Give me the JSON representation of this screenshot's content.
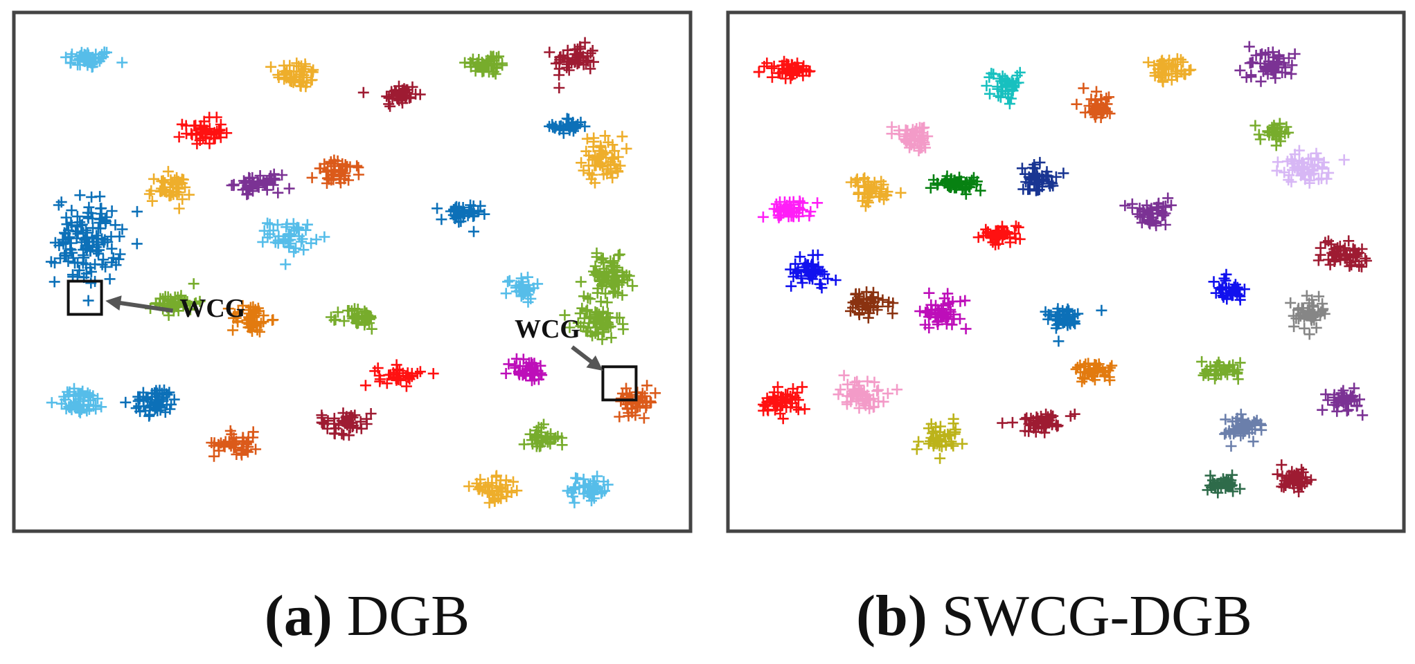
{
  "chart_data": [
    {
      "type": "scatter",
      "panel_label": "(a)",
      "title": "DGB",
      "marker": "plus",
      "xlim": [
        0,
        100
      ],
      "ylim": [
        0,
        100
      ],
      "grid": false,
      "legend": "none",
      "annotations": [
        {
          "text": "WCG",
          "box": [
            10.5,
            45
          ],
          "arrow_from": [
            23.5,
            42.5
          ],
          "text_at": [
            24.5,
            42.5
          ]
        },
        {
          "text": "WCG",
          "box": [
            89.5,
            28.5
          ],
          "arrow_from": [
            82.5,
            35.5
          ],
          "text_at": [
            74,
            38.5
          ]
        }
      ],
      "clusters": [
        {
          "x": 11,
          "y": 91,
          "color": "#56bde9",
          "n": 45,
          "sx": 3.0,
          "sy": 1.5
        },
        {
          "x": 42,
          "y": 88,
          "color": "#eeae2b",
          "n": 45,
          "sx": 2.6,
          "sy": 2.2
        },
        {
          "x": 57,
          "y": 84,
          "color": "#9e1b32",
          "n": 40,
          "sx": 2.2,
          "sy": 2.0
        },
        {
          "x": 70,
          "y": 90,
          "color": "#77ac2c",
          "n": 45,
          "sx": 2.6,
          "sy": 1.8
        },
        {
          "x": 83,
          "y": 91,
          "color": "#9e1b32",
          "n": 50,
          "sx": 2.6,
          "sy": 2.2
        },
        {
          "x": 28,
          "y": 77,
          "color": "#ff1111",
          "n": 45,
          "sx": 2.4,
          "sy": 2.0
        },
        {
          "x": 82,
          "y": 78,
          "color": "#0c70b8",
          "n": 30,
          "sx": 1.9,
          "sy": 1.4
        },
        {
          "x": 87,
          "y": 72,
          "color": "#eeae2b",
          "n": 55,
          "sx": 2.5,
          "sy": 3.5
        },
        {
          "x": 23,
          "y": 66,
          "color": "#eeae2b",
          "n": 45,
          "sx": 2.6,
          "sy": 2.2
        },
        {
          "x": 36,
          "y": 67,
          "color": "#7b3294",
          "n": 45,
          "sx": 2.8,
          "sy": 1.4
        },
        {
          "x": 48,
          "y": 69,
          "color": "#db5a1a",
          "n": 45,
          "sx": 2.8,
          "sy": 2.0
        },
        {
          "x": 11,
          "y": 56,
          "color": "#0c70b8",
          "n": 130,
          "sx": 4.0,
          "sy": 7.0
        },
        {
          "x": 41,
          "y": 57,
          "color": "#56bde9",
          "n": 45,
          "sx": 2.8,
          "sy": 2.4
        },
        {
          "x": 66,
          "y": 61,
          "color": "#0c70b8",
          "n": 40,
          "sx": 2.4,
          "sy": 1.8
        },
        {
          "x": 88,
          "y": 49,
          "color": "#77ac2c",
          "n": 80,
          "sx": 3.0,
          "sy": 3.2
        },
        {
          "x": 86,
          "y": 40,
          "color": "#77ac2c",
          "n": 60,
          "sx": 3.0,
          "sy": 2.8
        },
        {
          "x": 75,
          "y": 47,
          "color": "#56bde9",
          "n": 30,
          "sx": 1.8,
          "sy": 1.8
        },
        {
          "x": 24,
          "y": 44,
          "color": "#77ac2c",
          "n": 45,
          "sx": 2.6,
          "sy": 1.8
        },
        {
          "x": 35,
          "y": 41,
          "color": "#e27a0f",
          "n": 45,
          "sx": 2.4,
          "sy": 2.4
        },
        {
          "x": 51,
          "y": 41,
          "color": "#77ac2c",
          "n": 40,
          "sx": 2.2,
          "sy": 1.8
        },
        {
          "x": 76,
          "y": 31,
          "color": "#bd0eb9",
          "n": 40,
          "sx": 2.4,
          "sy": 1.8
        },
        {
          "x": 10,
          "y": 25,
          "color": "#56bde9",
          "n": 50,
          "sx": 3.0,
          "sy": 2.0
        },
        {
          "x": 21,
          "y": 25,
          "color": "#0c70b8",
          "n": 55,
          "sx": 2.8,
          "sy": 2.2
        },
        {
          "x": 33,
          "y": 17,
          "color": "#db5a1a",
          "n": 45,
          "sx": 2.8,
          "sy": 1.8
        },
        {
          "x": 49,
          "y": 21,
          "color": "#9e1b32",
          "n": 45,
          "sx": 3.2,
          "sy": 1.8
        },
        {
          "x": 57,
          "y": 30,
          "color": "#ff1111",
          "n": 35,
          "sx": 2.6,
          "sy": 1.5
        },
        {
          "x": 92,
          "y": 25,
          "color": "#db5a1a",
          "n": 45,
          "sx": 2.4,
          "sy": 2.0
        },
        {
          "x": 78,
          "y": 18,
          "color": "#77ac2c",
          "n": 40,
          "sx": 2.2,
          "sy": 1.8
        },
        {
          "x": 71,
          "y": 8,
          "color": "#eeae2b",
          "n": 45,
          "sx": 2.8,
          "sy": 1.8
        },
        {
          "x": 85,
          "y": 8,
          "color": "#56bde9",
          "n": 45,
          "sx": 2.6,
          "sy": 2.4
        }
      ]
    },
    {
      "type": "scatter",
      "panel_label": "(b)",
      "title": "SWCG-DGB",
      "marker": "plus",
      "xlim": [
        0,
        100
      ],
      "ylim": [
        0,
        100
      ],
      "grid": false,
      "legend": "none",
      "annotations": [],
      "clusters": [
        {
          "x": 9,
          "y": 89,
          "color": "#ff1111",
          "n": 45,
          "sx": 2.8,
          "sy": 1.4
        },
        {
          "x": 41,
          "y": 86,
          "color": "#17c0bf",
          "n": 40,
          "sx": 2.0,
          "sy": 2.2
        },
        {
          "x": 55,
          "y": 82,
          "color": "#db5a1a",
          "n": 40,
          "sx": 2.0,
          "sy": 2.0
        },
        {
          "x": 65,
          "y": 89,
          "color": "#eeae2b",
          "n": 45,
          "sx": 2.6,
          "sy": 1.8
        },
        {
          "x": 80,
          "y": 90,
          "color": "#7b3294",
          "n": 50,
          "sx": 2.6,
          "sy": 2.4
        },
        {
          "x": 27,
          "y": 76,
          "color": "#f39bc8",
          "n": 45,
          "sx": 2.6,
          "sy": 2.0
        },
        {
          "x": 81,
          "y": 77,
          "color": "#77ac2c",
          "n": 30,
          "sx": 1.6,
          "sy": 1.6
        },
        {
          "x": 86,
          "y": 70,
          "color": "#d7b7f5",
          "n": 55,
          "sx": 2.8,
          "sy": 2.6
        },
        {
          "x": 9,
          "y": 62,
          "color": "#ff1ef7",
          "n": 45,
          "sx": 2.6,
          "sy": 2.0
        },
        {
          "x": 21,
          "y": 66,
          "color": "#eeae2b",
          "n": 45,
          "sx": 2.6,
          "sy": 2.2
        },
        {
          "x": 34,
          "y": 67,
          "color": "#078112",
          "n": 55,
          "sx": 2.8,
          "sy": 1.4
        },
        {
          "x": 46,
          "y": 68,
          "color": "#193592",
          "n": 45,
          "sx": 2.4,
          "sy": 2.0
        },
        {
          "x": 40,
          "y": 57,
          "color": "#ff1111",
          "n": 45,
          "sx": 2.8,
          "sy": 1.8
        },
        {
          "x": 63,
          "y": 61,
          "color": "#7b3294",
          "n": 45,
          "sx": 2.8,
          "sy": 2.0
        },
        {
          "x": 12,
          "y": 50,
          "color": "#1111ee",
          "n": 50,
          "sx": 2.4,
          "sy": 2.2
        },
        {
          "x": 21,
          "y": 44,
          "color": "#8a3210",
          "n": 45,
          "sx": 2.4,
          "sy": 1.8
        },
        {
          "x": 32,
          "y": 42,
          "color": "#bd0eb9",
          "n": 50,
          "sx": 2.6,
          "sy": 2.4
        },
        {
          "x": 50,
          "y": 41,
          "color": "#0c70b8",
          "n": 45,
          "sx": 2.2,
          "sy": 2.0
        },
        {
          "x": 74,
          "y": 47,
          "color": "#1111ee",
          "n": 35,
          "sx": 1.8,
          "sy": 1.8
        },
        {
          "x": 91,
          "y": 53,
          "color": "#9e1b32",
          "n": 50,
          "sx": 2.6,
          "sy": 2.0
        },
        {
          "x": 86,
          "y": 42,
          "color": "#868686",
          "n": 45,
          "sx": 2.0,
          "sy": 2.4
        },
        {
          "x": 54,
          "y": 31,
          "color": "#e27a0f",
          "n": 40,
          "sx": 2.4,
          "sy": 1.4
        },
        {
          "x": 73,
          "y": 31,
          "color": "#77ac2c",
          "n": 40,
          "sx": 2.2,
          "sy": 1.6
        },
        {
          "x": 8,
          "y": 25,
          "color": "#ff1111",
          "n": 50,
          "sx": 2.6,
          "sy": 2.2
        },
        {
          "x": 20,
          "y": 26,
          "color": "#f39bc8",
          "n": 50,
          "sx": 2.6,
          "sy": 2.2
        },
        {
          "x": 31,
          "y": 18,
          "color": "#bcb31a",
          "n": 45,
          "sx": 2.4,
          "sy": 2.2
        },
        {
          "x": 46,
          "y": 21,
          "color": "#9e1b32",
          "n": 45,
          "sx": 2.6,
          "sy": 1.6
        },
        {
          "x": 76,
          "y": 20,
          "color": "#6b7fab",
          "n": 50,
          "sx": 2.6,
          "sy": 1.8
        },
        {
          "x": 91,
          "y": 25,
          "color": "#7b3294",
          "n": 40,
          "sx": 2.2,
          "sy": 1.6
        },
        {
          "x": 73,
          "y": 9,
          "color": "#2e6b4a",
          "n": 40,
          "sx": 2.4,
          "sy": 1.4
        },
        {
          "x": 84,
          "y": 10,
          "color": "#9e1b32",
          "n": 40,
          "sx": 1.8,
          "sy": 1.8
        }
      ]
    }
  ]
}
